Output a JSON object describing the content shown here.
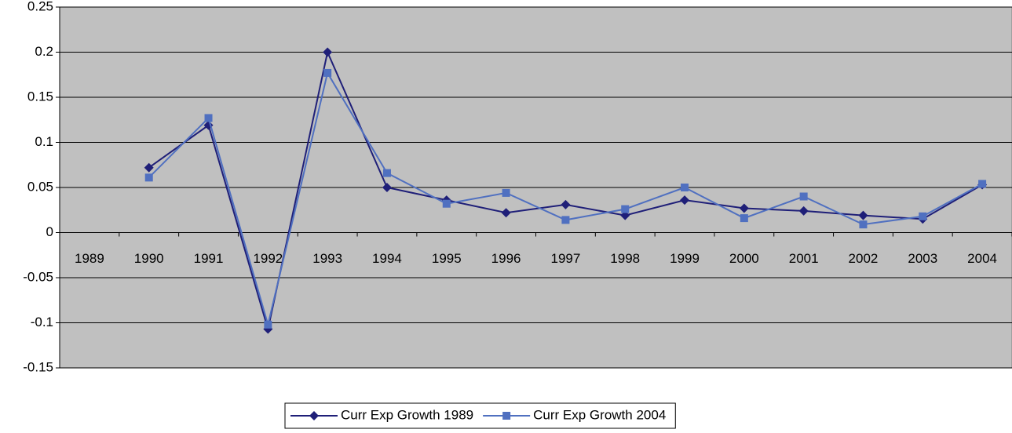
{
  "chart_data": {
    "type": "line",
    "categories": [
      "1989",
      "1990",
      "1991",
      "1992",
      "1993",
      "1994",
      "1995",
      "1996",
      "1997",
      "1998",
      "1999",
      "2000",
      "2001",
      "2002",
      "2003",
      "2004"
    ],
    "series": [
      {
        "name": "Curr Exp Growth 1989",
        "color": "#1f1f78",
        "marker": "diamond",
        "values": [
          null,
          0.072,
          0.119,
          -0.107,
          0.2,
          0.05,
          0.036,
          0.022,
          0.031,
          0.019,
          0.036,
          0.027,
          0.024,
          0.019,
          0.015,
          0.053
        ]
      },
      {
        "name": "Curr Exp Growth 2004",
        "color": "#5070c0",
        "marker": "square",
        "values": [
          null,
          0.061,
          0.127,
          -0.102,
          0.177,
          0.066,
          0.032,
          0.044,
          0.014,
          0.026,
          0.05,
          0.016,
          0.04,
          0.009,
          0.018,
          0.054
        ]
      }
    ],
    "ylim": [
      -0.15,
      0.25
    ],
    "yticks": [
      -0.15,
      -0.1,
      -0.05,
      0,
      0.05,
      0.1,
      0.15,
      0.2,
      0.25
    ],
    "grid": true,
    "legend": "bottom",
    "background": "#c0c0c0"
  }
}
